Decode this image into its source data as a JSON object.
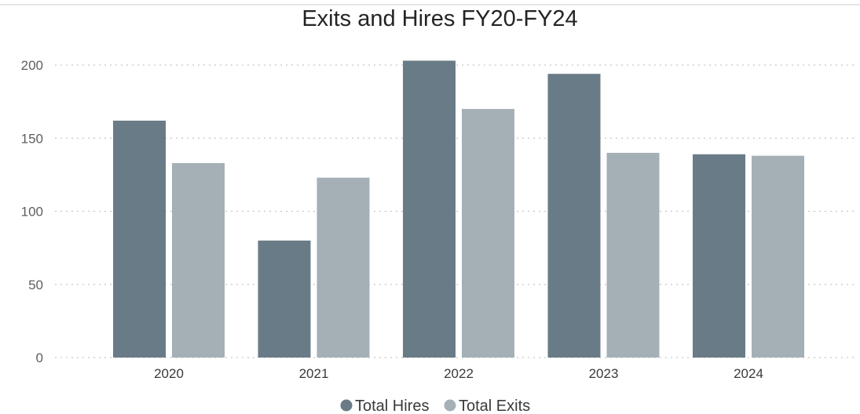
{
  "chart_data": {
    "type": "bar",
    "title": "Exits and Hires FY20-FY24",
    "xlabel": "",
    "ylabel": "",
    "categories": [
      "2020",
      "2021",
      "2022",
      "2023",
      "2024"
    ],
    "series": [
      {
        "name": "Total Hires",
        "color": "#697b86",
        "values": [
          162,
          80,
          203,
          194,
          139
        ]
      },
      {
        "name": "Total Exits",
        "color": "#a4b0b6",
        "values": [
          133,
          123,
          170,
          140,
          138
        ]
      }
    ],
    "ylim": [
      0,
      200
    ],
    "yticks": [
      0,
      50,
      100,
      150,
      200
    ],
    "grid": true,
    "legend_position": "bottom-center"
  }
}
